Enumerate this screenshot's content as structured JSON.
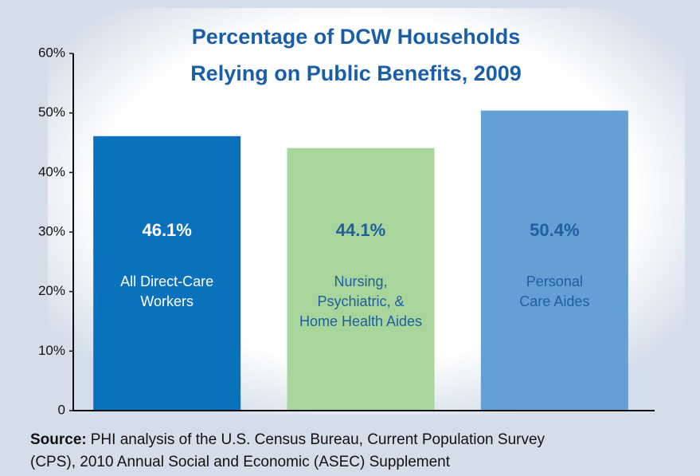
{
  "chart_data": {
    "type": "bar",
    "title": [
      "Percentage of DCW Households",
      "Relying on Public Benefits, 2009"
    ],
    "categories": [
      [
        "All Direct-Care",
        "Workers"
      ],
      [
        "Nursing,",
        "Psychiatric, &",
        "Home Health Aides"
      ],
      [
        "Personal",
        "Care Aides"
      ]
    ],
    "values": [
      46.1,
      44.1,
      50.4
    ],
    "value_labels": [
      "46.1%",
      "44.1%",
      "50.4%"
    ],
    "colors": [
      "#0a72bd",
      "#a8d59b",
      "#64a0d6"
    ],
    "label_colors": [
      "#ffffff",
      "#1f5fa0",
      "#1f5fa0"
    ],
    "ylim": [
      0,
      60
    ],
    "yticks": [
      0,
      {
        "value": 10,
        "label": "10%"
      },
      {
        "value": 20,
        "label": "20%"
      },
      {
        "value": 30,
        "label": "30%"
      },
      {
        "value": 40,
        "label": "40%"
      },
      {
        "value": 50,
        "label": "50%"
      },
      {
        "value": 60,
        "label": "60%"
      }
    ],
    "source": {
      "label": "Source:",
      "text": [
        "PHI analysis of the U.S. Census Bureau, Current Population Survey",
        "(CPS), 2010 Annual Social and Economic (ASEC) Supplement"
      ]
    }
  }
}
